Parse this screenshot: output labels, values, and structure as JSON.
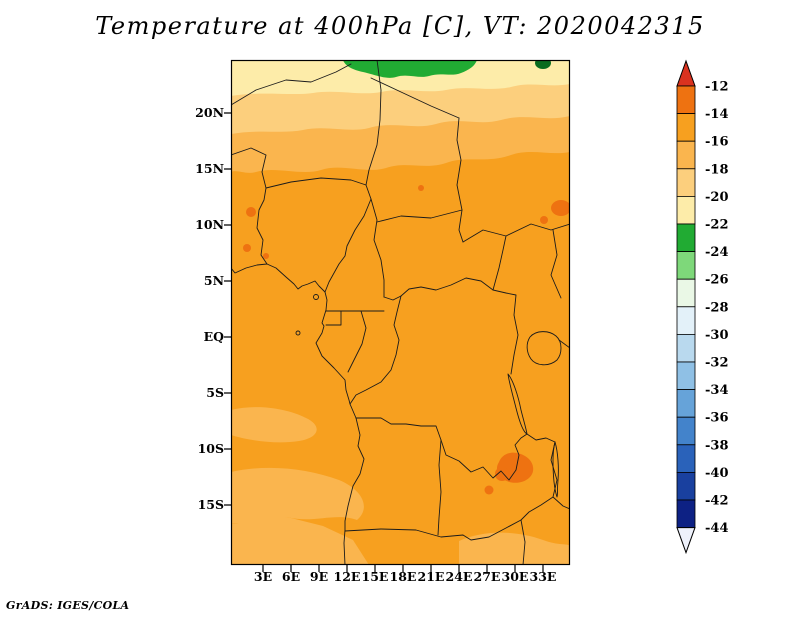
{
  "title": "Temperature at 400hPa [C], VT: 2020042315",
  "footer": "GrADS: IGES/COLA",
  "axes": {
    "lat_labels": [
      "20N",
      "15N",
      "10N",
      "5N",
      "EQ",
      "5S",
      "10S",
      "15S"
    ],
    "lon_labels": [
      "3E",
      "6E",
      "9E",
      "12E",
      "15E",
      "18E",
      "21E",
      "24E",
      "27E",
      "30E",
      "33E"
    ]
  },
  "colorbar": {
    "tick_labels": [
      "-12",
      "-14",
      "-16",
      "-18",
      "-20",
      "-22",
      "-24",
      "-26",
      "-28",
      "-30",
      "-32",
      "-34",
      "-36",
      "-38",
      "-40",
      "-42",
      "-44"
    ],
    "top_arrow_color": "#da321f",
    "bottom_arrow_color": "#eef1fb",
    "segment_colors": [
      "#ee7211",
      "#f7a01f",
      "#fab54e",
      "#fccf7d",
      "#fdeca9",
      "#21ab33",
      "#7ed87a",
      "#eaf8e6",
      "#e3f1f9",
      "#b9d9ee",
      "#8fc0e5",
      "#66a3d9",
      "#4383cb",
      "#2a62ba",
      "#19409f",
      "#0d2184"
    ]
  },
  "map_colors": {
    "band_minus12_14": "#ee7211",
    "band_minus14_16": "#f7a01f",
    "band_minus16_18": "#fab54e",
    "band_minus18_20": "#fccf7d",
    "band_minus20_22": "#fdeca9",
    "band_minus22_24": "#21ab33",
    "north_cold_spot": "#0a6b1e",
    "border": "#1b1b1b"
  },
  "chart_data": {
    "type": "heatmap",
    "title": "Temperature at 400hPa [C], VT: 2020042315",
    "variable": "Temperature",
    "level_hPa": 400,
    "units": "C",
    "valid_time_label": "VT: 2020042315",
    "x_axis": {
      "label_type": "longitude",
      "ticks": [
        "3E",
        "6E",
        "9E",
        "12E",
        "15E",
        "18E",
        "21E",
        "24E",
        "27E",
        "30E",
        "33E"
      ]
    },
    "y_axis": {
      "label_type": "latitude",
      "ticks": [
        "20N",
        "15N",
        "10N",
        "5N",
        "EQ",
        "5S",
        "10S",
        "15S"
      ]
    },
    "contour_levels": [
      -12,
      -14,
      -16,
      -18,
      -20,
      -22,
      -24,
      -26,
      -28,
      -30,
      -32,
      -34,
      -36,
      -38,
      -40,
      -42,
      -44
    ],
    "legend_position": "right",
    "attribution": "GrADS: IGES/COLA",
    "field_regions": [
      {
        "area": "bulk of domain from ~15N south to ~18S (central Africa)",
        "range_c": "-16 to -14"
      },
      {
        "area": "zonal band ~15N-19N, plus patches southwest coast and far south",
        "range_c": "-18 to -16"
      },
      {
        "area": "zonal band ~19N-21.5N",
        "range_c": "-20 to -18"
      },
      {
        "area": "zonal band ~21.5N to top of domain (~24.5N)",
        "range_c": "-22 to -20"
      },
      {
        "area": "far north near 24N between ~12E and 25E",
        "range_c": "-24 to -22"
      },
      {
        "area": "warm spots near 30E/11S, 34E/11N, 2E/10N-12N, 20E/13N",
        "range_c": "-14 to -12"
      }
    ]
  }
}
